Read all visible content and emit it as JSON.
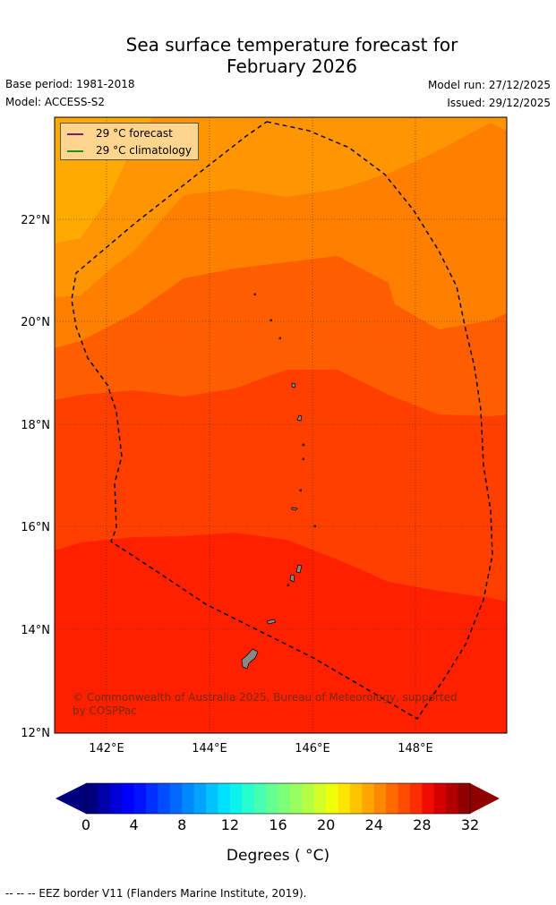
{
  "title": {
    "line1": "Sea surface temperature forecast for",
    "line2": "February 2026"
  },
  "meta": {
    "base_period": "Base period: 1981-2018",
    "model": "Model: ACCESS-S2",
    "model_run": "Model run: 27/12/2025",
    "issued": "Issued: 29/12/2025"
  },
  "legend": {
    "forecast_label": "29 °C  forecast",
    "forecast_color": "#7b1f6a",
    "climatology_label": "29 °C  climatology",
    "climatology_color": "#1f8f1f"
  },
  "map": {
    "lat_labels": [
      "22°N",
      "20°N",
      "18°N",
      "16°N",
      "14°N",
      "12°N"
    ],
    "lon_labels": [
      "142°E",
      "144°E",
      "146°E",
      "148°E"
    ],
    "copyright": "© Commonwealth of Australia 2025, Bureau of Meteorology, supported by COSPPac",
    "band_colors": [
      "#ffaa00",
      "#ff9500",
      "#ff7f00",
      "#ff5e00",
      "#ff3f00",
      "#ff2000"
    ]
  },
  "colorbar": {
    "tick_labels": [
      "0",
      "4",
      "8",
      "12",
      "16",
      "20",
      "24",
      "28",
      "32"
    ],
    "label": "Degrees ( °C)",
    "colors": [
      "#00007f",
      "#0000aa",
      "#0000d4",
      "#0000ff",
      "#0012ff",
      "#0030ff",
      "#004cff",
      "#006aff",
      "#0088ff",
      "#00a4ff",
      "#00c2ff",
      "#00e0ff",
      "#0cf4eb",
      "#29ffce",
      "#46ffb1",
      "#63ff93",
      "#7dff7a",
      "#97ff5f",
      "#b4ff43",
      "#d1ff26",
      "#eeff09",
      "#ffe500",
      "#ffc400",
      "#ffa600",
      "#ff8800",
      "#ff6a00",
      "#ff4c00",
      "#ff2e00",
      "#f10c00",
      "#d40000",
      "#b20000",
      "#900000"
    ]
  },
  "footer": "--  --  -- EEZ border V11 (Flanders Marine Institute, 2019)."
}
